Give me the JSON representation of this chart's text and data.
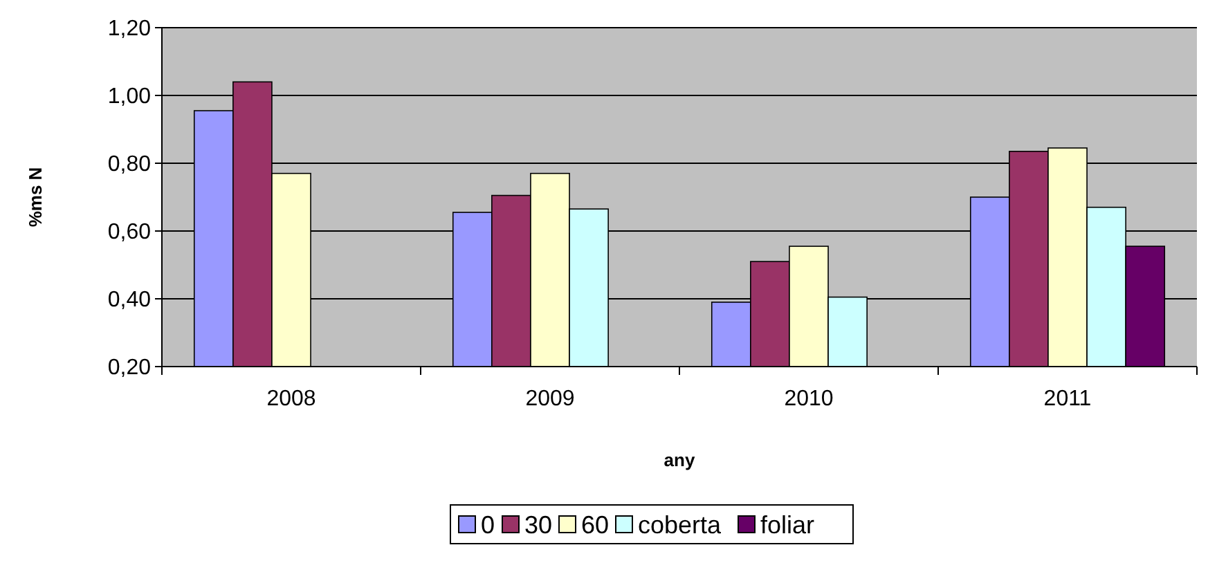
{
  "chart_data": {
    "type": "bar",
    "xlabel": "any",
    "ylabel": "%ms N",
    "categories": [
      "2008",
      "2009",
      "2010",
      "2011"
    ],
    "series": [
      {
        "name": "0",
        "color": "#9999ff",
        "values": [
          0.955,
          0.655,
          0.39,
          0.7
        ]
      },
      {
        "name": "30",
        "color": "#993366",
        "values": [
          1.04,
          0.705,
          0.51,
          0.835
        ]
      },
      {
        "name": "60",
        "color": "#ffffcc",
        "values": [
          0.77,
          0.77,
          0.555,
          0.845
        ]
      },
      {
        "name": "coberta",
        "color": "#ccffff",
        "values": [
          null,
          0.665,
          0.405,
          0.67
        ]
      },
      {
        "name": "foliar",
        "color": "#660066",
        "values": [
          null,
          null,
          null,
          0.555
        ]
      }
    ],
    "ylim": [
      0.2,
      1.2
    ],
    "yticks": [
      {
        "value": 0.2,
        "label": "0,20"
      },
      {
        "value": 0.4,
        "label": "0,40"
      },
      {
        "value": 0.6,
        "label": "0,60"
      },
      {
        "value": 0.8,
        "label": "0,80"
      },
      {
        "value": 1.0,
        "label": "1,00"
      },
      {
        "value": 1.2,
        "label": "1,20"
      }
    ],
    "grid": "y",
    "legend": "bottom"
  }
}
